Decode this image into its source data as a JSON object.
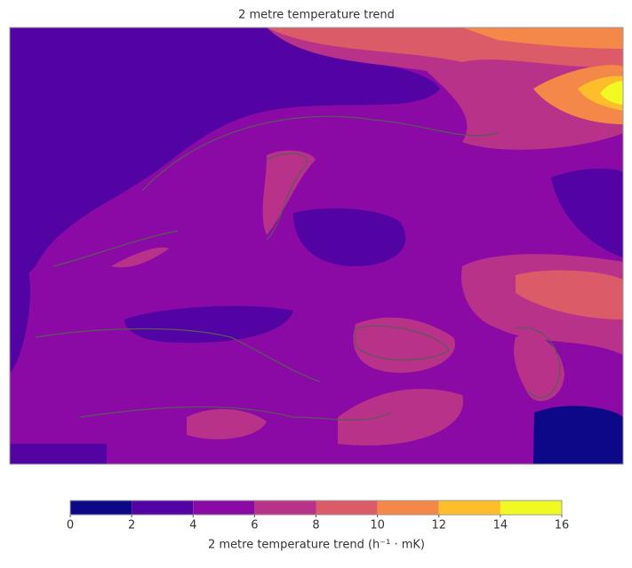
{
  "title": "2 metre temperature trend",
  "colorbar": {
    "label": "2 metre temperature trend (h⁻¹ · mK)",
    "levels": [
      0,
      2,
      4,
      6,
      8,
      10,
      12,
      14,
      16
    ],
    "colors": [
      "#0d0887",
      "#5302a3",
      "#8b0aa5",
      "#b83289",
      "#db5c68",
      "#f48849",
      "#febd2a",
      "#f0f921"
    ]
  }
}
